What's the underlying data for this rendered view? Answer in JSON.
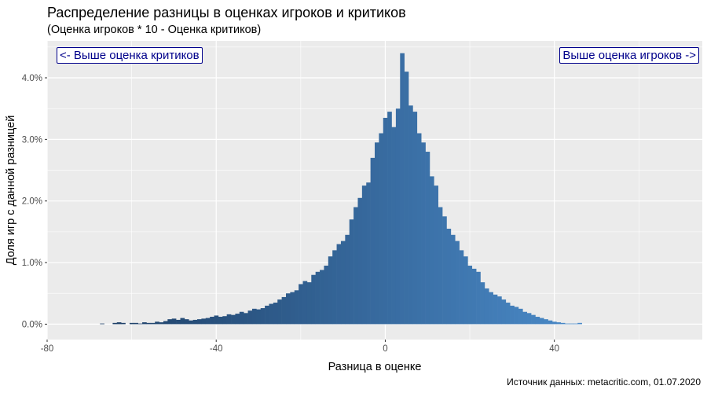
{
  "chart_data": {
    "type": "bar",
    "title": "Распределение разницы в оценках игроков и критиков",
    "subtitle": "(Оценка игроков * 10 - Оценка критиков)",
    "xlabel": "Разница в оценке",
    "ylabel": "Доля игр с данной разницей",
    "caption": "Источник данных: metacritic.com, 01.07.2020",
    "annotations": {
      "left": "<- Выше оценка критиков",
      "right": "Выше оценка игроков ->"
    },
    "xlim": [
      -80,
      75
    ],
    "ylim": [
      -0.25,
      4.6
    ],
    "x_ticks": [
      -80,
      -40,
      0,
      40
    ],
    "x_tick_labels": [
      "-80",
      "-40",
      "0",
      "40"
    ],
    "y_ticks": [
      0,
      1,
      2,
      3,
      4
    ],
    "y_tick_labels": [
      "0.0%",
      "1.0%",
      "2.0%",
      "3.0%",
      "4.0%"
    ],
    "bin_width": 1,
    "colors": {
      "low": "#1e3f66",
      "high": "#4a8ac8",
      "panel": "#ebebeb",
      "grid": "#ffffff",
      "annotation": "#00008b"
    },
    "bins_x": [
      -67,
      -66,
      -65,
      -64,
      -63,
      -62,
      -61,
      -60,
      -59,
      -58,
      -57,
      -56,
      -55,
      -54,
      -53,
      -52,
      -51,
      -50,
      -49,
      -48,
      -47,
      -46,
      -45,
      -44,
      -43,
      -42,
      -41,
      -40,
      -39,
      -38,
      -37,
      -36,
      -35,
      -34,
      -33,
      -32,
      -31,
      -30,
      -29,
      -28,
      -27,
      -26,
      -25,
      -24,
      -23,
      -22,
      -21,
      -20,
      -19,
      -18,
      -17,
      -16,
      -15,
      -14,
      -13,
      -12,
      -11,
      -10,
      -9,
      -8,
      -7,
      -6,
      -5,
      -4,
      -3,
      -2,
      -1,
      0,
      1,
      2,
      3,
      4,
      5,
      6,
      7,
      8,
      9,
      10,
      11,
      12,
      13,
      14,
      15,
      16,
      17,
      18,
      19,
      20,
      21,
      22,
      23,
      24,
      25,
      26,
      27,
      28,
      29,
      30,
      31,
      32,
      33,
      34,
      35,
      36,
      37,
      38,
      39,
      40,
      41,
      42,
      43,
      44,
      45,
      46
    ],
    "values": [
      0.01,
      0,
      0,
      0.02,
      0.03,
      0.02,
      0,
      0.02,
      0.02,
      0.01,
      0.03,
      0.02,
      0.02,
      0.04,
      0.03,
      0.05,
      0.08,
      0.09,
      0.07,
      0.1,
      0.08,
      0.06,
      0.07,
      0.08,
      0.09,
      0.1,
      0.12,
      0.14,
      0.12,
      0.13,
      0.16,
      0.15,
      0.17,
      0.2,
      0.18,
      0.22,
      0.25,
      0.24,
      0.26,
      0.3,
      0.33,
      0.35,
      0.4,
      0.44,
      0.5,
      0.52,
      0.55,
      0.65,
      0.7,
      0.68,
      0.8,
      0.85,
      0.88,
      0.95,
      1.1,
      1.2,
      1.3,
      1.35,
      1.45,
      1.7,
      1.9,
      2.05,
      2.25,
      2.3,
      2.7,
      2.95,
      3.1,
      3.35,
      3.45,
      3.2,
      3.5,
      4.4,
      4.1,
      3.55,
      3.45,
      3.1,
      2.95,
      2.8,
      2.4,
      2.25,
      1.9,
      1.75,
      1.55,
      1.45,
      1.35,
      1.2,
      1.1,
      0.95,
      0.9,
      0.85,
      0.68,
      0.58,
      0.52,
      0.48,
      0.45,
      0.4,
      0.35,
      0.3,
      0.28,
      0.25,
      0.2,
      0.18,
      0.15,
      0.12,
      0.1,
      0.08,
      0.06,
      0.04,
      0.03,
      0.02,
      0.01,
      0.01,
      0.01,
      0.02
    ]
  }
}
